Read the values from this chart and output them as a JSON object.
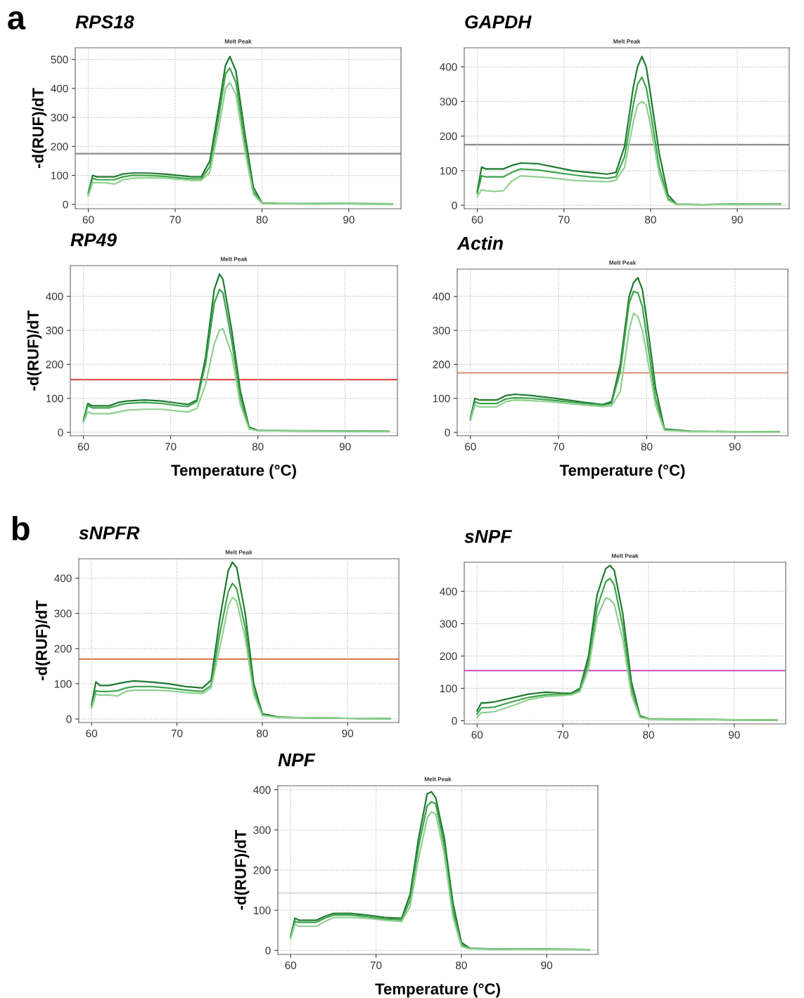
{
  "chart_data": [
    {
      "type": "line",
      "title": "RPS18",
      "subtitle": "Melt Peak",
      "ylabel": "-d(RUF)/dT",
      "annotations": [
        "a"
      ],
      "grid": true,
      "xlim": [
        58.5,
        96
      ],
      "ylim": [
        -15,
        540
      ],
      "xticks": [
        60,
        70,
        80,
        90
      ],
      "yticks": [
        0,
        100,
        200,
        300,
        400,
        500
      ],
      "ref_lines": [
        {
          "axis": "y",
          "value": 175,
          "color": "#8c8c8c"
        }
      ],
      "x": [
        60,
        60.5,
        61,
        62,
        63,
        64,
        65,
        67,
        69,
        71,
        72,
        73,
        74,
        75,
        75.8,
        76.3,
        77,
        78,
        79,
        80,
        82,
        86,
        90,
        95
      ],
      "series": [
        {
          "color": "#1f7a2e",
          "values": [
            40,
            100,
            95,
            95,
            95,
            105,
            108,
            108,
            104,
            98,
            95,
            95,
            150,
            330,
            480,
            510,
            460,
            250,
            60,
            5,
            3,
            2,
            3,
            2
          ]
        },
        {
          "color": "#3fa34d",
          "values": [
            35,
            90,
            85,
            85,
            85,
            95,
            100,
            100,
            96,
            90,
            88,
            88,
            130,
            300,
            450,
            470,
            420,
            220,
            45,
            4,
            2,
            2,
            2,
            1
          ]
        },
        {
          "color": "#8fd18f",
          "values": [
            30,
            75,
            75,
            75,
            70,
            85,
            90,
            92,
            90,
            85,
            82,
            83,
            110,
            260,
            400,
            420,
            380,
            190,
            35,
            3,
            2,
            1,
            2,
            1
          ]
        }
      ]
    },
    {
      "type": "line",
      "title": "GAPDH",
      "subtitle": "Melt Peak",
      "grid": true,
      "xlim": [
        58.5,
        96
      ],
      "ylim": [
        -10,
        455
      ],
      "xticks": [
        60,
        70,
        80,
        90
      ],
      "yticks": [
        0,
        100,
        200,
        300,
        400
      ],
      "ref_lines": [
        {
          "axis": "y",
          "value": 175,
          "color": "#8c8c8c"
        }
      ],
      "x": [
        60,
        60.5,
        61,
        62,
        63,
        64,
        65,
        67,
        69,
        71,
        73,
        75,
        76,
        77,
        78,
        78.5,
        79,
        79.5,
        80,
        81,
        82,
        83,
        86,
        90,
        95
      ],
      "series": [
        {
          "color": "#1f7a2e",
          "values": [
            40,
            110,
            105,
            105,
            105,
            115,
            122,
            120,
            110,
            100,
            95,
            90,
            95,
            170,
            340,
            400,
            430,
            400,
            320,
            150,
            30,
            3,
            2,
            3,
            3
          ]
        },
        {
          "color": "#3fa34d",
          "values": [
            35,
            85,
            82,
            82,
            82,
            95,
            105,
            102,
            95,
            88,
            82,
            78,
            82,
            140,
            290,
            350,
            370,
            340,
            270,
            110,
            20,
            3,
            2,
            3,
            3
          ]
        },
        {
          "color": "#8fd18f",
          "values": [
            25,
            45,
            42,
            40,
            42,
            70,
            85,
            82,
            78,
            72,
            70,
            68,
            72,
            110,
            240,
            290,
            300,
            290,
            230,
            90,
            15,
            2,
            2,
            2,
            2
          ]
        }
      ]
    },
    {
      "type": "line",
      "title": "RP49",
      "subtitle": "Melt Peak",
      "xlabel": "Temperature (°C)",
      "ylabel": "-d(RUF)/dT",
      "grid": true,
      "xlim": [
        58.5,
        96
      ],
      "ylim": [
        -10,
        490
      ],
      "xticks": [
        60,
        70,
        80,
        90
      ],
      "yticks": [
        0,
        100,
        200,
        300,
        400
      ],
      "ref_lines": [
        {
          "axis": "y",
          "value": 155,
          "color": "#e05050"
        }
      ],
      "x": [
        60,
        60.5,
        61,
        62,
        63,
        64,
        65,
        67,
        69,
        71,
        72,
        73,
        74,
        75,
        75.6,
        76,
        77,
        78,
        79,
        80,
        84,
        90,
        95
      ],
      "series": [
        {
          "color": "#1f7a2e",
          "values": [
            35,
            85,
            78,
            78,
            78,
            88,
            92,
            95,
            92,
            85,
            82,
            95,
            220,
            420,
            465,
            450,
            300,
            120,
            15,
            6,
            5,
            4,
            3
          ]
        },
        {
          "color": "#3fa34d",
          "values": [
            35,
            80,
            72,
            72,
            72,
            80,
            85,
            88,
            85,
            78,
            76,
            90,
            200,
            380,
            420,
            410,
            270,
            100,
            12,
            5,
            4,
            3,
            3
          ]
        },
        {
          "color": "#8fd18f",
          "values": [
            30,
            60,
            55,
            55,
            55,
            60,
            65,
            68,
            68,
            62,
            60,
            70,
            140,
            260,
            300,
            305,
            230,
            80,
            10,
            5,
            4,
            3,
            3
          ]
        }
      ]
    },
    {
      "type": "line",
      "title": "Actin",
      "subtitle": "Melt Peak",
      "xlabel": "Temperature (°C)",
      "grid": true,
      "xlim": [
        58.5,
        96
      ],
      "ylim": [
        -10,
        480
      ],
      "xticks": [
        60,
        70,
        80,
        90
      ],
      "yticks": [
        0,
        100,
        200,
        300,
        400
      ],
      "ref_lines": [
        {
          "axis": "y",
          "value": 175,
          "color": "#d98c6a"
        }
      ],
      "x": [
        60,
        60.5,
        61,
        62,
        63,
        64,
        65,
        67,
        69,
        71,
        73,
        75,
        76,
        77,
        78,
        78.5,
        79,
        79.5,
        80,
        81,
        82,
        85,
        90,
        95
      ],
      "series": [
        {
          "color": "#1f7a2e",
          "values": [
            40,
            100,
            95,
            95,
            95,
            108,
            112,
            108,
            102,
            95,
            88,
            82,
            90,
            200,
            400,
            440,
            455,
            420,
            330,
            130,
            10,
            3,
            2,
            2
          ]
        },
        {
          "color": "#3fa34d",
          "values": [
            38,
            90,
            85,
            85,
            85,
            98,
            102,
            100,
            95,
            90,
            85,
            80,
            85,
            180,
            380,
            415,
            410,
            370,
            280,
            100,
            8,
            3,
            2,
            2
          ]
        },
        {
          "color": "#8fd18f",
          "values": [
            35,
            80,
            75,
            75,
            75,
            90,
            95,
            93,
            90,
            85,
            80,
            76,
            78,
            120,
            300,
            350,
            340,
            300,
            230,
            80,
            6,
            2,
            2,
            1
          ]
        }
      ]
    },
    {
      "type": "line",
      "title": "sNPFR",
      "subtitle": "Melt Peak",
      "ylabel": "-d(RUF)/dT",
      "annotations": [
        "b"
      ],
      "grid": true,
      "xlim": [
        58.5,
        96
      ],
      "ylim": [
        -10,
        455
      ],
      "xticks": [
        60,
        70,
        80,
        90
      ],
      "yticks": [
        0,
        100,
        200,
        300,
        400
      ],
      "ref_lines": [
        {
          "axis": "y",
          "value": 170,
          "color": "#d9703c"
        }
      ],
      "x": [
        60,
        60.5,
        61,
        62,
        63,
        64,
        65,
        67,
        69,
        71,
        73,
        74,
        75,
        76,
        76.5,
        77,
        78,
        79,
        80,
        82,
        86,
        90,
        95
      ],
      "series": [
        {
          "color": "#1f7a2e",
          "values": [
            40,
            105,
            95,
            95,
            100,
            105,
            108,
            105,
            100,
            92,
            88,
            110,
            280,
            420,
            445,
            430,
            300,
            100,
            15,
            5,
            3,
            2,
            1
          ]
        },
        {
          "color": "#3fa34d",
          "values": [
            35,
            80,
            78,
            78,
            80,
            88,
            92,
            92,
            88,
            82,
            78,
            95,
            240,
            360,
            385,
            370,
            260,
            80,
            12,
            4,
            3,
            2,
            1
          ]
        },
        {
          "color": "#8fd18f",
          "values": [
            30,
            70,
            68,
            68,
            65,
            78,
            82,
            82,
            80,
            75,
            72,
            88,
            200,
            320,
            345,
            335,
            230,
            70,
            10,
            4,
            3,
            2,
            1
          ]
        }
      ]
    },
    {
      "type": "line",
      "title": "sNPF",
      "subtitle": "Melt Peak",
      "grid": true,
      "xlim": [
        58.5,
        96
      ],
      "ylim": [
        -10,
        490
      ],
      "xticks": [
        60,
        70,
        80,
        90
      ],
      "yticks": [
        0,
        100,
        200,
        300,
        400
      ],
      "ref_lines": [
        {
          "axis": "y",
          "value": 155,
          "color": "#d060c0"
        }
      ],
      "x": [
        60,
        60.5,
        61,
        62,
        64,
        66,
        68,
        70,
        71,
        72,
        73,
        74,
        75,
        75.5,
        76,
        77,
        78,
        79,
        80,
        85,
        90,
        95
      ],
      "series": [
        {
          "color": "#1f7a2e",
          "values": [
            30,
            55,
            55,
            58,
            70,
            82,
            88,
            85,
            85,
            100,
            200,
            390,
            470,
            480,
            465,
            330,
            120,
            15,
            6,
            4,
            3,
            2
          ]
        },
        {
          "color": "#3fa34d",
          "values": [
            20,
            40,
            40,
            42,
            58,
            72,
            80,
            80,
            82,
            95,
            180,
            350,
            430,
            440,
            420,
            290,
            100,
            12,
            5,
            4,
            3,
            2
          ]
        },
        {
          "color": "#8fd18f",
          "values": [
            10,
            25,
            25,
            28,
            45,
            65,
            75,
            78,
            80,
            90,
            160,
            320,
            380,
            375,
            360,
            250,
            80,
            10,
            5,
            4,
            3,
            2
          ]
        }
      ]
    },
    {
      "type": "line",
      "title": "NPF",
      "subtitle": "Melt Peak",
      "xlabel": "Temperature (°C)",
      "ylabel": "-d(RUF)/dT",
      "grid": true,
      "xlim": [
        58.5,
        96
      ],
      "ylim": [
        -10,
        410
      ],
      "xticks": [
        60,
        70,
        80,
        90
      ],
      "yticks": [
        0,
        100,
        200,
        300,
        400
      ],
      "ref_lines": [
        {
          "axis": "y",
          "value": 143,
          "color": "#d8d8d8"
        }
      ],
      "x": [
        60,
        60.5,
        61,
        62,
        63,
        64,
        65,
        67,
        69,
        71,
        73,
        74,
        75,
        76,
        76.5,
        77,
        78,
        79,
        80,
        81,
        85,
        90,
        95
      ],
      "series": [
        {
          "color": "#1f7a2e",
          "values": [
            35,
            80,
            75,
            75,
            75,
            85,
            92,
            92,
            88,
            82,
            80,
            140,
            280,
            390,
            395,
            380,
            280,
            120,
            20,
            5,
            3,
            3,
            2
          ]
        },
        {
          "color": "#3fa34d",
          "values": [
            32,
            72,
            70,
            70,
            70,
            80,
            88,
            88,
            84,
            78,
            76,
            125,
            260,
            360,
            370,
            365,
            260,
            100,
            15,
            4,
            3,
            3,
            2
          ]
        },
        {
          "color": "#8fd18f",
          "values": [
            30,
            65,
            60,
            60,
            60,
            72,
            82,
            82,
            80,
            75,
            72,
            110,
            230,
            330,
            345,
            340,
            240,
            85,
            10,
            4,
            3,
            2,
            2
          ]
        }
      ]
    }
  ]
}
